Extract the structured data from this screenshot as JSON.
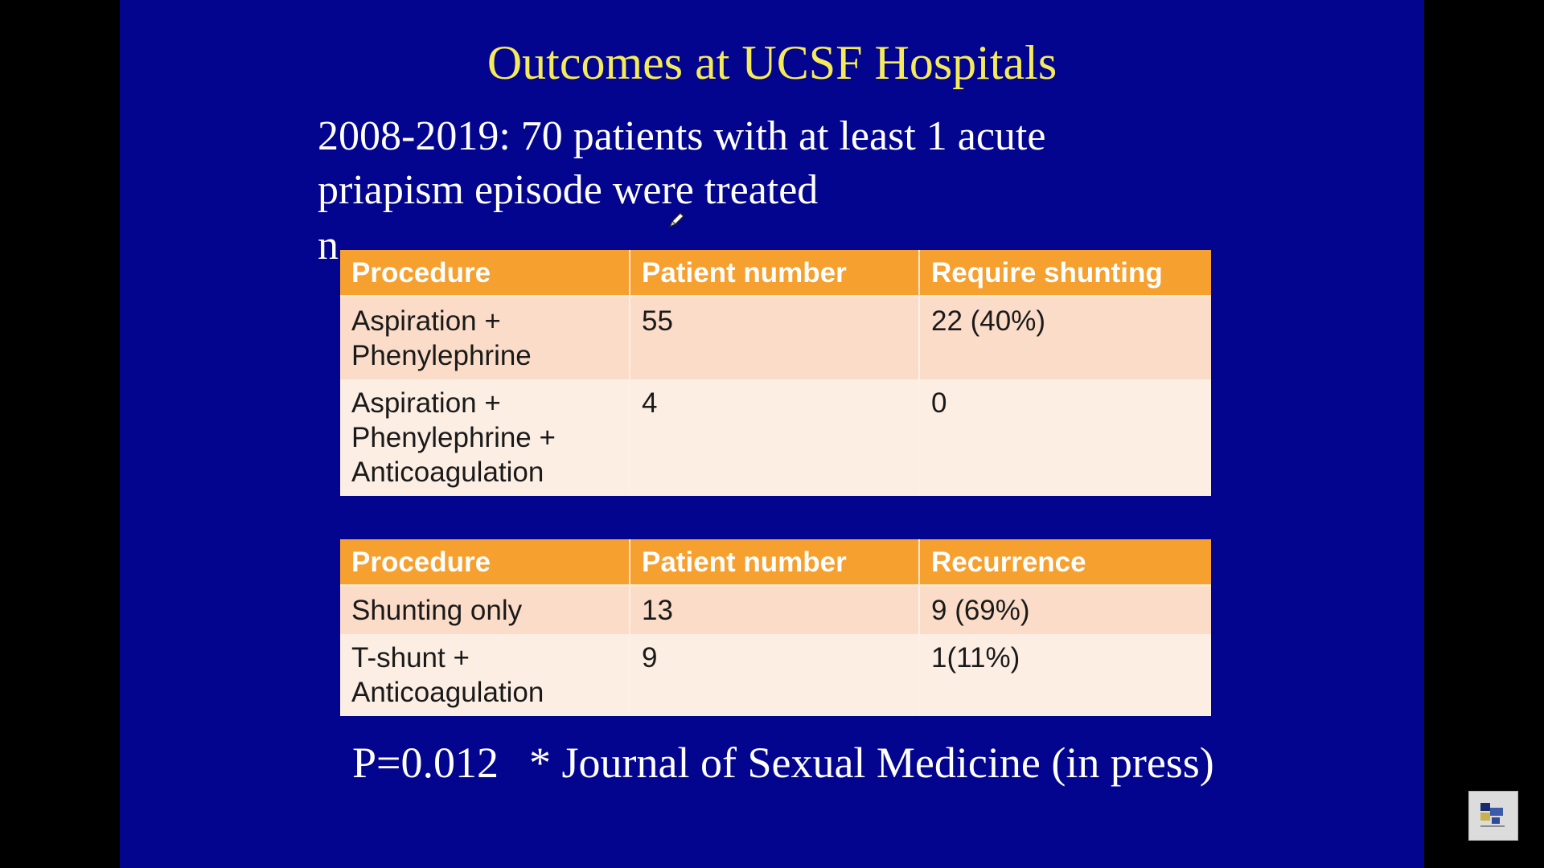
{
  "slide": {
    "title": "Outcomes at UCSF Hospitals",
    "intro_line1": "2008-2019: 70 patients with at least 1 acute",
    "intro_line2": "priapism episode were treated",
    "stray_text": "n"
  },
  "table1": {
    "headers": [
      "Procedure",
      "Patient number",
      "Require shunting"
    ],
    "rows": [
      {
        "procedure_line1": "Aspiration +",
        "procedure_line2": "Phenylephrine",
        "procedure_line3": "",
        "patients": "55",
        "outcome": "22 (40%)"
      },
      {
        "procedure_line1": "Aspiration +",
        "procedure_line2": "Phenylephrine +",
        "procedure_line3": "Anticoagulation",
        "patients": "4",
        "outcome": "0"
      }
    ]
  },
  "table2": {
    "headers": [
      "Procedure",
      "Patient number",
      "Recurrence"
    ],
    "rows": [
      {
        "procedure_line1": "Shunting only",
        "procedure_line2": "",
        "patients": "13",
        "outcome": "9 (69%)"
      },
      {
        "procedure_line1": "T-shunt +",
        "procedure_line2": "Anticoagulation",
        "patients": "9",
        "outcome": "1(11%)"
      }
    ]
  },
  "footer": {
    "p_value": "P=0.012",
    "citation": "* Journal of Sexual Medicine (in press)"
  },
  "colors": {
    "slide_background": "#03058f",
    "title": "#f5eb5a",
    "header_fill": "#f6a030",
    "row_odd": "#fbdcc8",
    "row_even": "#fdeee4"
  },
  "icons": {
    "cursor": "pen-cursor-icon",
    "thumbnail": "video-thumbnail-icon"
  }
}
